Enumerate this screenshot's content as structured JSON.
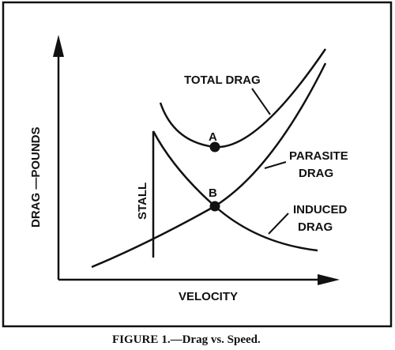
{
  "caption": {
    "figure_word": "FIGURE",
    "figure_num": "1.",
    "text": "—Drag vs. Speed."
  },
  "chart_data": {
    "type": "line",
    "title": "",
    "xlabel": "VELOCITY",
    "ylabel": "DRAG —POUNDS",
    "grid": false,
    "legend": "none",
    "axis_ticks": "none (qualitative diagram)",
    "series": [
      {
        "name": "TOTAL DRAG",
        "shape": "U-shaped curve with minimum at point A"
      },
      {
        "name": "PARASITE DRAG",
        "shape": "increases with velocity, starting low at left"
      },
      {
        "name": "INDUCED DRAG",
        "shape": "decreases with velocity from stall line"
      }
    ],
    "points": [
      {
        "label": "A",
        "meaning": "minimum of total drag"
      },
      {
        "label": "B",
        "meaning": "intersection of parasite and induced drag"
      }
    ],
    "annotations": [
      "STALL"
    ]
  }
}
